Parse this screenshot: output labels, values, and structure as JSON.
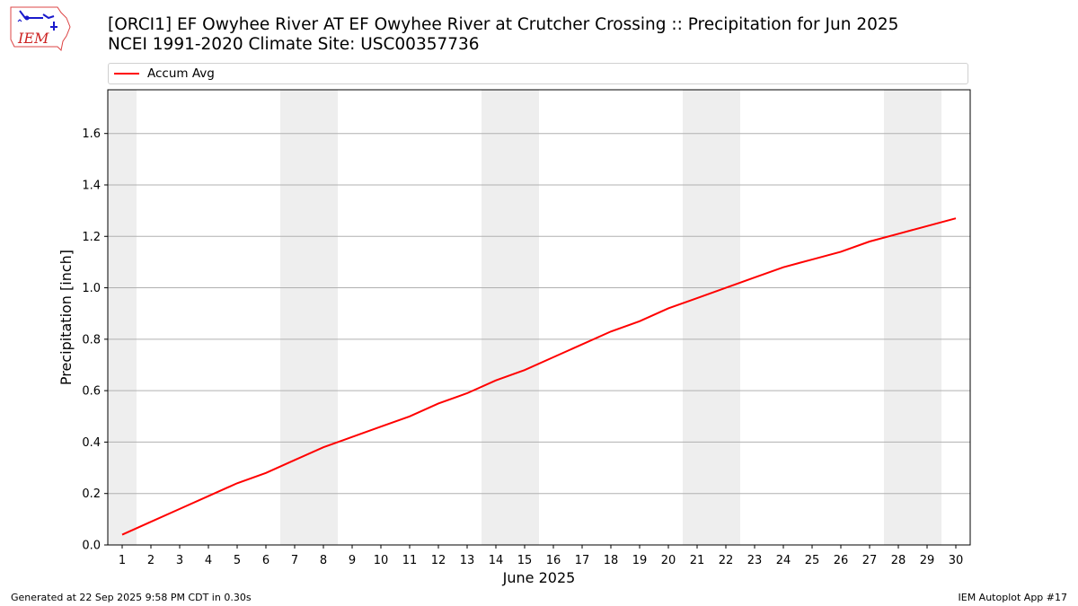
{
  "title_line1": "[ORCI1] EF Owyhee River  AT EF Owyhee River at Crutcher Crossing :: Precipitation for Jun 2025",
  "title_line2": "NCEI 1991-2020 Climate Site: USC00357736",
  "logo_text": "IEM",
  "footer": {
    "generated": "Generated at 22 Sep 2025 9:58 PM CDT in 0.30s",
    "app": "IEM Autoplot App #17"
  },
  "colors": {
    "line": "#ff0000",
    "weekend_shade": "#eeeeee",
    "grid": "#b0b0b0"
  },
  "chart_data": {
    "type": "line",
    "xlabel": "June 2025",
    "ylabel": "Precipitation [inch]",
    "x": [
      1,
      2,
      3,
      4,
      5,
      6,
      7,
      8,
      9,
      10,
      11,
      12,
      13,
      14,
      15,
      16,
      17,
      18,
      19,
      20,
      21,
      22,
      23,
      24,
      25,
      26,
      27,
      28,
      29,
      30
    ],
    "x_tick_labels": [
      "1",
      "2",
      "3",
      "4",
      "5",
      "6",
      "7",
      "8",
      "9",
      "10",
      "11",
      "12",
      "13",
      "14",
      "15",
      "16",
      "17",
      "18",
      "19",
      "20",
      "21",
      "22",
      "23",
      "24",
      "25",
      "26",
      "27",
      "28",
      "29",
      "30"
    ],
    "xlim": [
      0.5,
      30.5
    ],
    "ylim": [
      0,
      1.77
    ],
    "y_ticks": [
      0.0,
      0.2,
      0.4,
      0.6,
      0.8,
      1.0,
      1.2,
      1.4,
      1.6
    ],
    "y_tick_labels": [
      "0.0",
      "0.2",
      "0.4",
      "0.6",
      "0.8",
      "1.0",
      "1.2",
      "1.4",
      "1.6"
    ],
    "grid": "horizontal",
    "legend_position": "top",
    "shaded_days": [
      [
        0.5,
        1.5
      ],
      [
        6.5,
        8.5
      ],
      [
        13.5,
        15.5
      ],
      [
        20.5,
        22.5
      ],
      [
        27.5,
        29.5
      ]
    ],
    "series": [
      {
        "name": "Accum Avg",
        "color": "#ff0000",
        "values": [
          0.04,
          0.09,
          0.14,
          0.19,
          0.24,
          0.28,
          0.33,
          0.38,
          0.42,
          0.46,
          0.5,
          0.55,
          0.59,
          0.64,
          0.68,
          0.73,
          0.78,
          0.83,
          0.87,
          0.92,
          0.96,
          1.0,
          1.04,
          1.08,
          1.11,
          1.14,
          1.18,
          1.21,
          1.24,
          1.27
        ]
      }
    ]
  }
}
